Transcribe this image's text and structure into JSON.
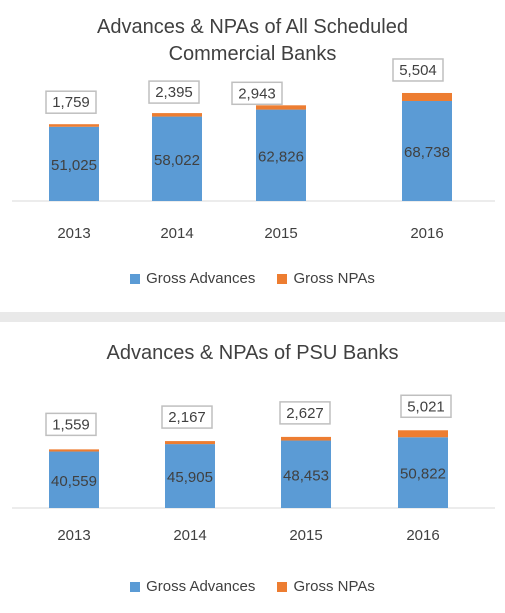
{
  "chart_data": [
    {
      "type": "bar",
      "stacked": true,
      "title": "Advances & NPAs of All Scheduled Commercial Banks",
      "title_lines": [
        "Advances & NPAs of All Scheduled",
        "Commercial Banks"
      ],
      "categories": [
        "2013",
        "2014",
        "2015",
        "2016"
      ],
      "series": [
        {
          "name": "Gross Advances",
          "color": "#5b9bd5",
          "values": [
            51025,
            58022,
            62826,
            68738
          ]
        },
        {
          "name": "Gross NPAs",
          "color": "#ed7d31",
          "values": [
            1759,
            2395,
            2943,
            5504
          ]
        }
      ],
      "data_labels": {
        "Gross Advances": [
          "51,025",
          "58,022",
          "62,826",
          "68,738"
        ],
        "Gross NPAs": [
          "1,759",
          "2,395",
          "2,943",
          "5,504"
        ]
      },
      "legend_position": "bottom",
      "grid": false
    },
    {
      "type": "bar",
      "stacked": true,
      "title": "Advances & NPAs of PSU Banks",
      "title_lines": [
        "Advances & NPAs of PSU Banks"
      ],
      "categories": [
        "2013",
        "2014",
        "2015",
        "2016"
      ],
      "series": [
        {
          "name": "Gross Advances",
          "color": "#5b9bd5",
          "values": [
            40559,
            45905,
            48453,
            50822
          ]
        },
        {
          "name": "Gross NPAs",
          "color": "#ed7d31",
          "values": [
            1559,
            2167,
            2627,
            5021
          ]
        }
      ],
      "data_labels": {
        "Gross Advances": [
          "40,559",
          "45,905",
          "48,453",
          "50,822"
        ],
        "Gross NPAs": [
          "1,559",
          "2,167",
          "2,627",
          "5,021"
        ]
      },
      "legend_position": "bottom",
      "grid": false
    }
  ]
}
